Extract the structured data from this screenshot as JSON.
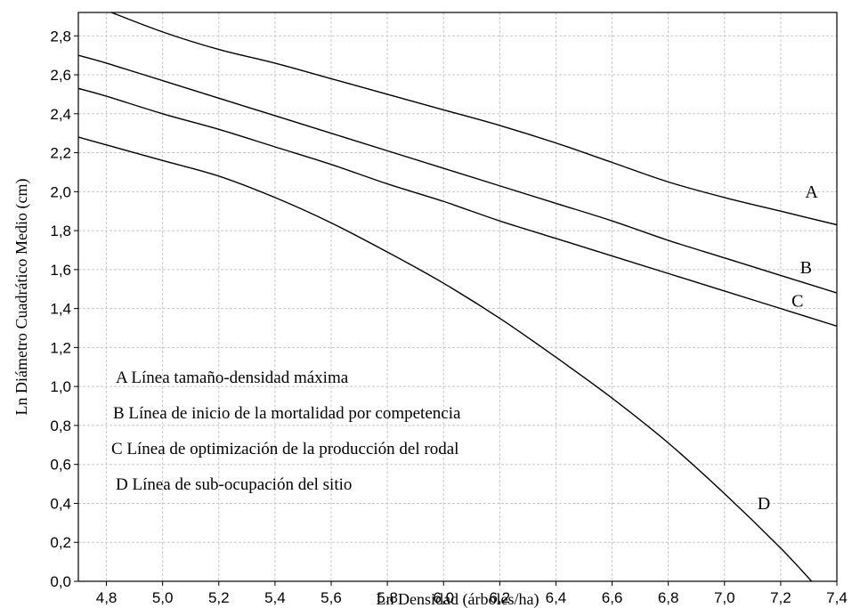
{
  "chart_data": {
    "type": "line",
    "xlabel": "Ln Densidad (árboles/ha)",
    "ylabel": "Ln Diámetro Cuadrático Medio (cm)",
    "xlim": [
      4.7,
      7.4
    ],
    "ylim": [
      0.0,
      2.92
    ],
    "x_ticks": [
      "4,8",
      "5,0",
      "5,2",
      "5,4",
      "5,6",
      "5,8",
      "6,0",
      "6,2",
      "6,4",
      "6,6",
      "6,8",
      "7,0",
      "7,2",
      "7,4"
    ],
    "x_tick_values": [
      4.8,
      5.0,
      5.2,
      5.4,
      5.6,
      5.8,
      6.0,
      6.2,
      6.4,
      6.6,
      6.8,
      7.0,
      7.2,
      7.4
    ],
    "y_ticks": [
      "0,0",
      "0,2",
      "0,4",
      "0,6",
      "0,8",
      "1,0",
      "1,2",
      "1,4",
      "1,6",
      "1,8",
      "2,0",
      "2,2",
      "2,4",
      "2,6",
      "2,8"
    ],
    "y_tick_values": [
      0.0,
      0.2,
      0.4,
      0.6,
      0.8,
      1.0,
      1.2,
      1.4,
      1.6,
      1.8,
      2.0,
      2.2,
      2.4,
      2.6,
      2.8
    ],
    "grid": true,
    "series": [
      {
        "name": "A",
        "x": [
          4.8,
          5.0,
          5.2,
          5.4,
          5.6,
          5.8,
          6.0,
          6.2,
          6.4,
          6.6,
          6.8,
          7.0,
          7.2,
          7.4
        ],
        "y": [
          2.93,
          2.82,
          2.73,
          2.66,
          2.58,
          2.5,
          2.42,
          2.34,
          2.25,
          2.15,
          2.05,
          1.97,
          1.9,
          1.83
        ]
      },
      {
        "name": "B",
        "x": [
          4.7,
          4.8,
          5.0,
          5.2,
          5.4,
          5.6,
          5.8,
          6.0,
          6.2,
          6.4,
          6.6,
          6.8,
          7.0,
          7.2,
          7.4
        ],
        "y": [
          2.7,
          2.66,
          2.57,
          2.48,
          2.39,
          2.3,
          2.21,
          2.12,
          2.03,
          1.94,
          1.85,
          1.75,
          1.66,
          1.57,
          1.48
        ]
      },
      {
        "name": "C",
        "x": [
          4.7,
          4.8,
          5.0,
          5.2,
          5.4,
          5.6,
          5.8,
          6.0,
          6.2,
          6.4,
          6.6,
          6.8,
          7.0,
          7.2,
          7.4
        ],
        "y": [
          2.53,
          2.49,
          2.4,
          2.32,
          2.23,
          2.14,
          2.04,
          1.95,
          1.85,
          1.76,
          1.67,
          1.58,
          1.49,
          1.4,
          1.31
        ]
      },
      {
        "name": "D",
        "x": [
          4.7,
          4.8,
          5.0,
          5.2,
          5.4,
          5.6,
          5.8,
          6.0,
          6.2,
          6.4,
          6.6,
          6.8,
          7.0,
          7.2,
          7.31
        ],
        "y": [
          2.28,
          2.24,
          2.16,
          2.08,
          1.97,
          1.84,
          1.69,
          1.53,
          1.35,
          1.15,
          0.94,
          0.71,
          0.45,
          0.17,
          0.0
        ]
      }
    ],
    "annotations": [
      "A Línea tamaño-densidad máxima",
      "B Línea de inicio de la mortalidad por competencia",
      "C Línea de optimización de la producción del rodal",
      "D Línea de sub-ocupación del sitio"
    ]
  }
}
